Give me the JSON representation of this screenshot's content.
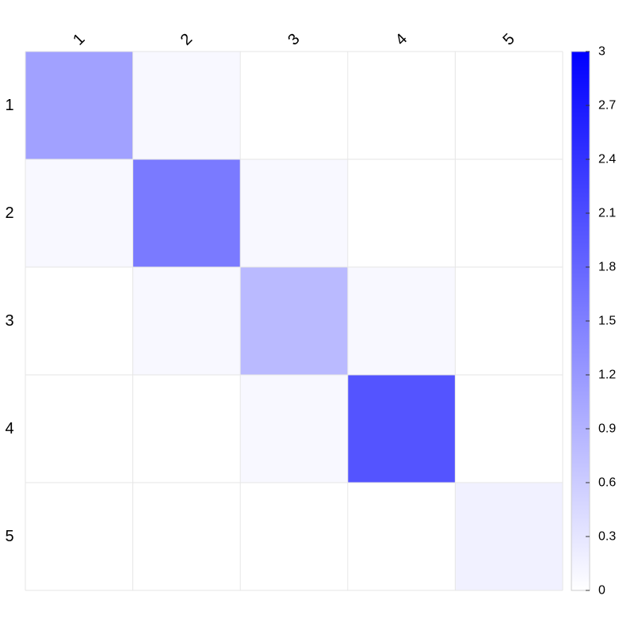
{
  "chart_data": {
    "type": "heatmap",
    "x_categories": [
      "1",
      "2",
      "3",
      "4",
      "5"
    ],
    "y_categories": [
      "1",
      "2",
      "3",
      "4",
      "5"
    ],
    "values": [
      [
        1.11,
        0.08,
        0.0,
        0.0,
        0.0
      ],
      [
        0.08,
        1.56,
        0.08,
        0.0,
        0.0
      ],
      [
        0.0,
        0.08,
        0.81,
        0.08,
        0.0
      ],
      [
        0.0,
        0.0,
        0.08,
        2.01,
        0.0
      ],
      [
        0.0,
        0.0,
        0.0,
        0.0,
        0.17
      ]
    ],
    "colorbar": {
      "min": 0,
      "max": 3,
      "ticks": [
        "0",
        "0.3",
        "0.6",
        "0.9",
        "1.2",
        "1.5",
        "1.8",
        "2.1",
        "2.4",
        "2.7",
        "3"
      ],
      "color_low": "#ffffff",
      "color_high": "#0000ff"
    },
    "title": "",
    "xlabel": "",
    "ylabel": "",
    "x_labels_position": "top",
    "x_labels_rotation": -45,
    "grid": true,
    "grid_color": "#e6e6e6"
  }
}
